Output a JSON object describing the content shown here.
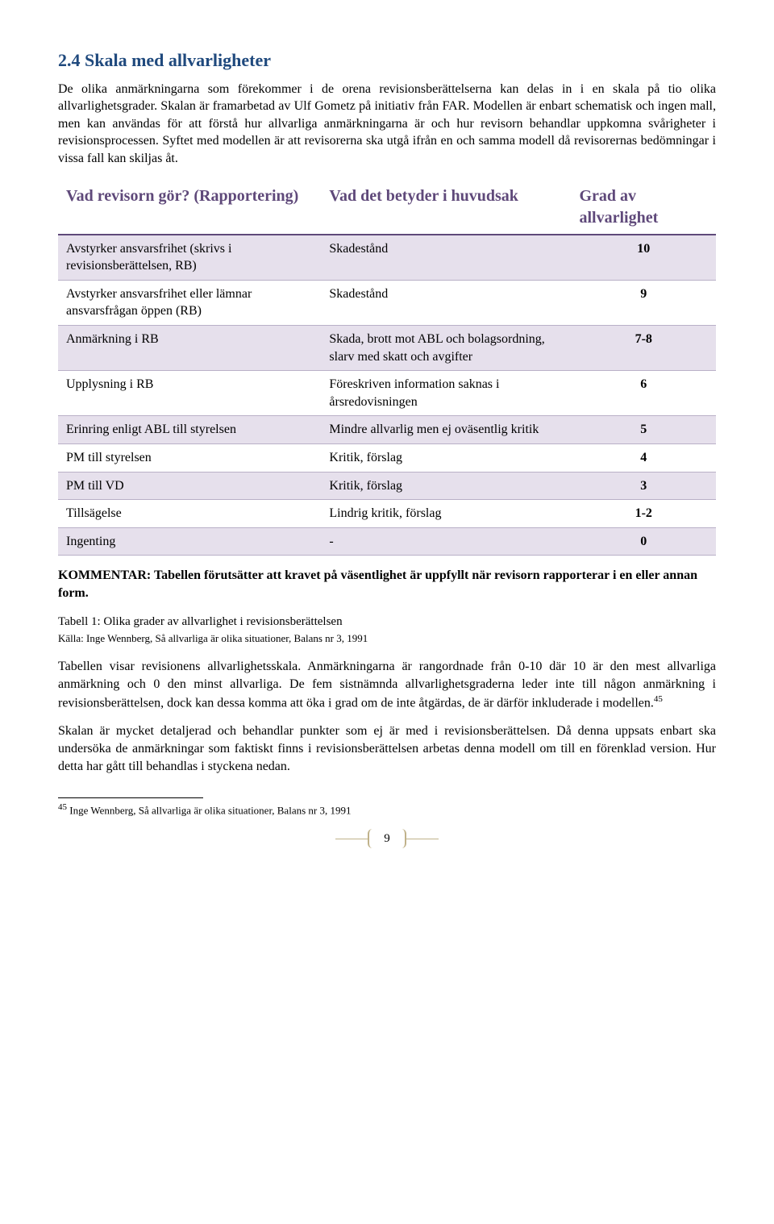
{
  "heading": "2.4 Skala med allvarligheter",
  "intro": "De olika anmärkningarna som förekommer i de orena revisionsberättelserna kan delas in i en skala på tio olika allvarlighetsgrader. Skalan är framarbetad av Ulf Gometz på initiativ från FAR. Modellen är enbart schematisk och ingen mall, men kan användas för att förstå hur allvarliga anmärkningarna är och hur revisorn behandlar uppkomna svårigheter i revisionsprocessen. Syftet med modellen är att revisorerna ska utgå ifrån en och samma modell då revisorernas bedömningar i vissa fall kan skiljas åt.",
  "table": {
    "columns": [
      "Vad revisorn gör? (Rapportering)",
      "Vad det betyder i huvudsak",
      "Grad av allvarlighet"
    ],
    "rows": [
      {
        "c1": "Avstyrker ansvarsfrihet (skrivs i revisionsberättelsen, RB)",
        "c2": "Skadestånd",
        "c3": "10",
        "band": true
      },
      {
        "c1": "Avstyrker ansvarsfrihet eller lämnar ansvarsfrågan öppen (RB)",
        "c2": "Skadestånd",
        "c3": "9",
        "band": false
      },
      {
        "c1": "Anmärkning i RB",
        "c2": "Skada, brott mot ABL och bolagsordning, slarv med skatt och avgifter",
        "c3": "7-8",
        "band": true
      },
      {
        "c1": "Upplysning i RB",
        "c2": "Föreskriven information saknas i årsredovisningen",
        "c3": "6",
        "band": false
      },
      {
        "c1": "Erinring enligt ABL till styrelsen",
        "c2": "Mindre allvarlig men ej oväsentlig kritik",
        "c3": "5",
        "band": true
      },
      {
        "c1": "PM till styrelsen",
        "c2": "Kritik, förslag",
        "c3": "4",
        "band": false
      },
      {
        "c1": "PM till VD",
        "c2": "Kritik, förslag",
        "c3": "3",
        "band": true
      },
      {
        "c1": "Tillsägelse",
        "c2": "Lindrig kritik, förslag",
        "c3": "1-2",
        "band": false
      },
      {
        "c1": "Ingenting",
        "c2": "-",
        "c3": "0",
        "band": true
      }
    ],
    "header_color": "#5f497a",
    "band_color": "#e6e0ec",
    "border_color": "#b9b0c7"
  },
  "kommentar_label": "KOMMENTAR: ",
  "kommentar_body": "Tabellen förutsätter att kravet på väsentlighet är uppfyllt när revisorn rapporterar i en eller annan form.",
  "caption": "Tabell 1: Olika grader av allvarlighet i revisionsberättelsen",
  "source": "Källa: Inge Wennberg, Så allvarliga är olika situationer, Balans nr 3, 1991",
  "para2": "Tabellen visar revisionens allvarlighetsskala. Anmärkningarna är rangordnade från 0-10 där 10 är den mest allvarliga anmärkning och 0 den minst allvarliga. De fem sistnämnda allvarlighetsgraderna leder inte till någon anmärkning i revisionsberättelsen, dock kan dessa komma att öka i grad om de inte åtgärdas, de är därför inkluderade i modellen.",
  "para2_sup": "45",
  "para3": "Skalan är mycket detaljerad och behandlar punkter som ej är med i revisionsberättelsen. Då denna uppsats enbart ska undersöka de anmärkningar som faktiskt finns i revisionsberättelsen arbetas denna modell om till en förenklad version. Hur detta har gått till behandlas i styckena nedan.",
  "footnote_num": "45",
  "footnote_text": " Inge Wennberg, Så allvarliga är olika situationer, Balans nr 3, 1991",
  "page_number": "9"
}
